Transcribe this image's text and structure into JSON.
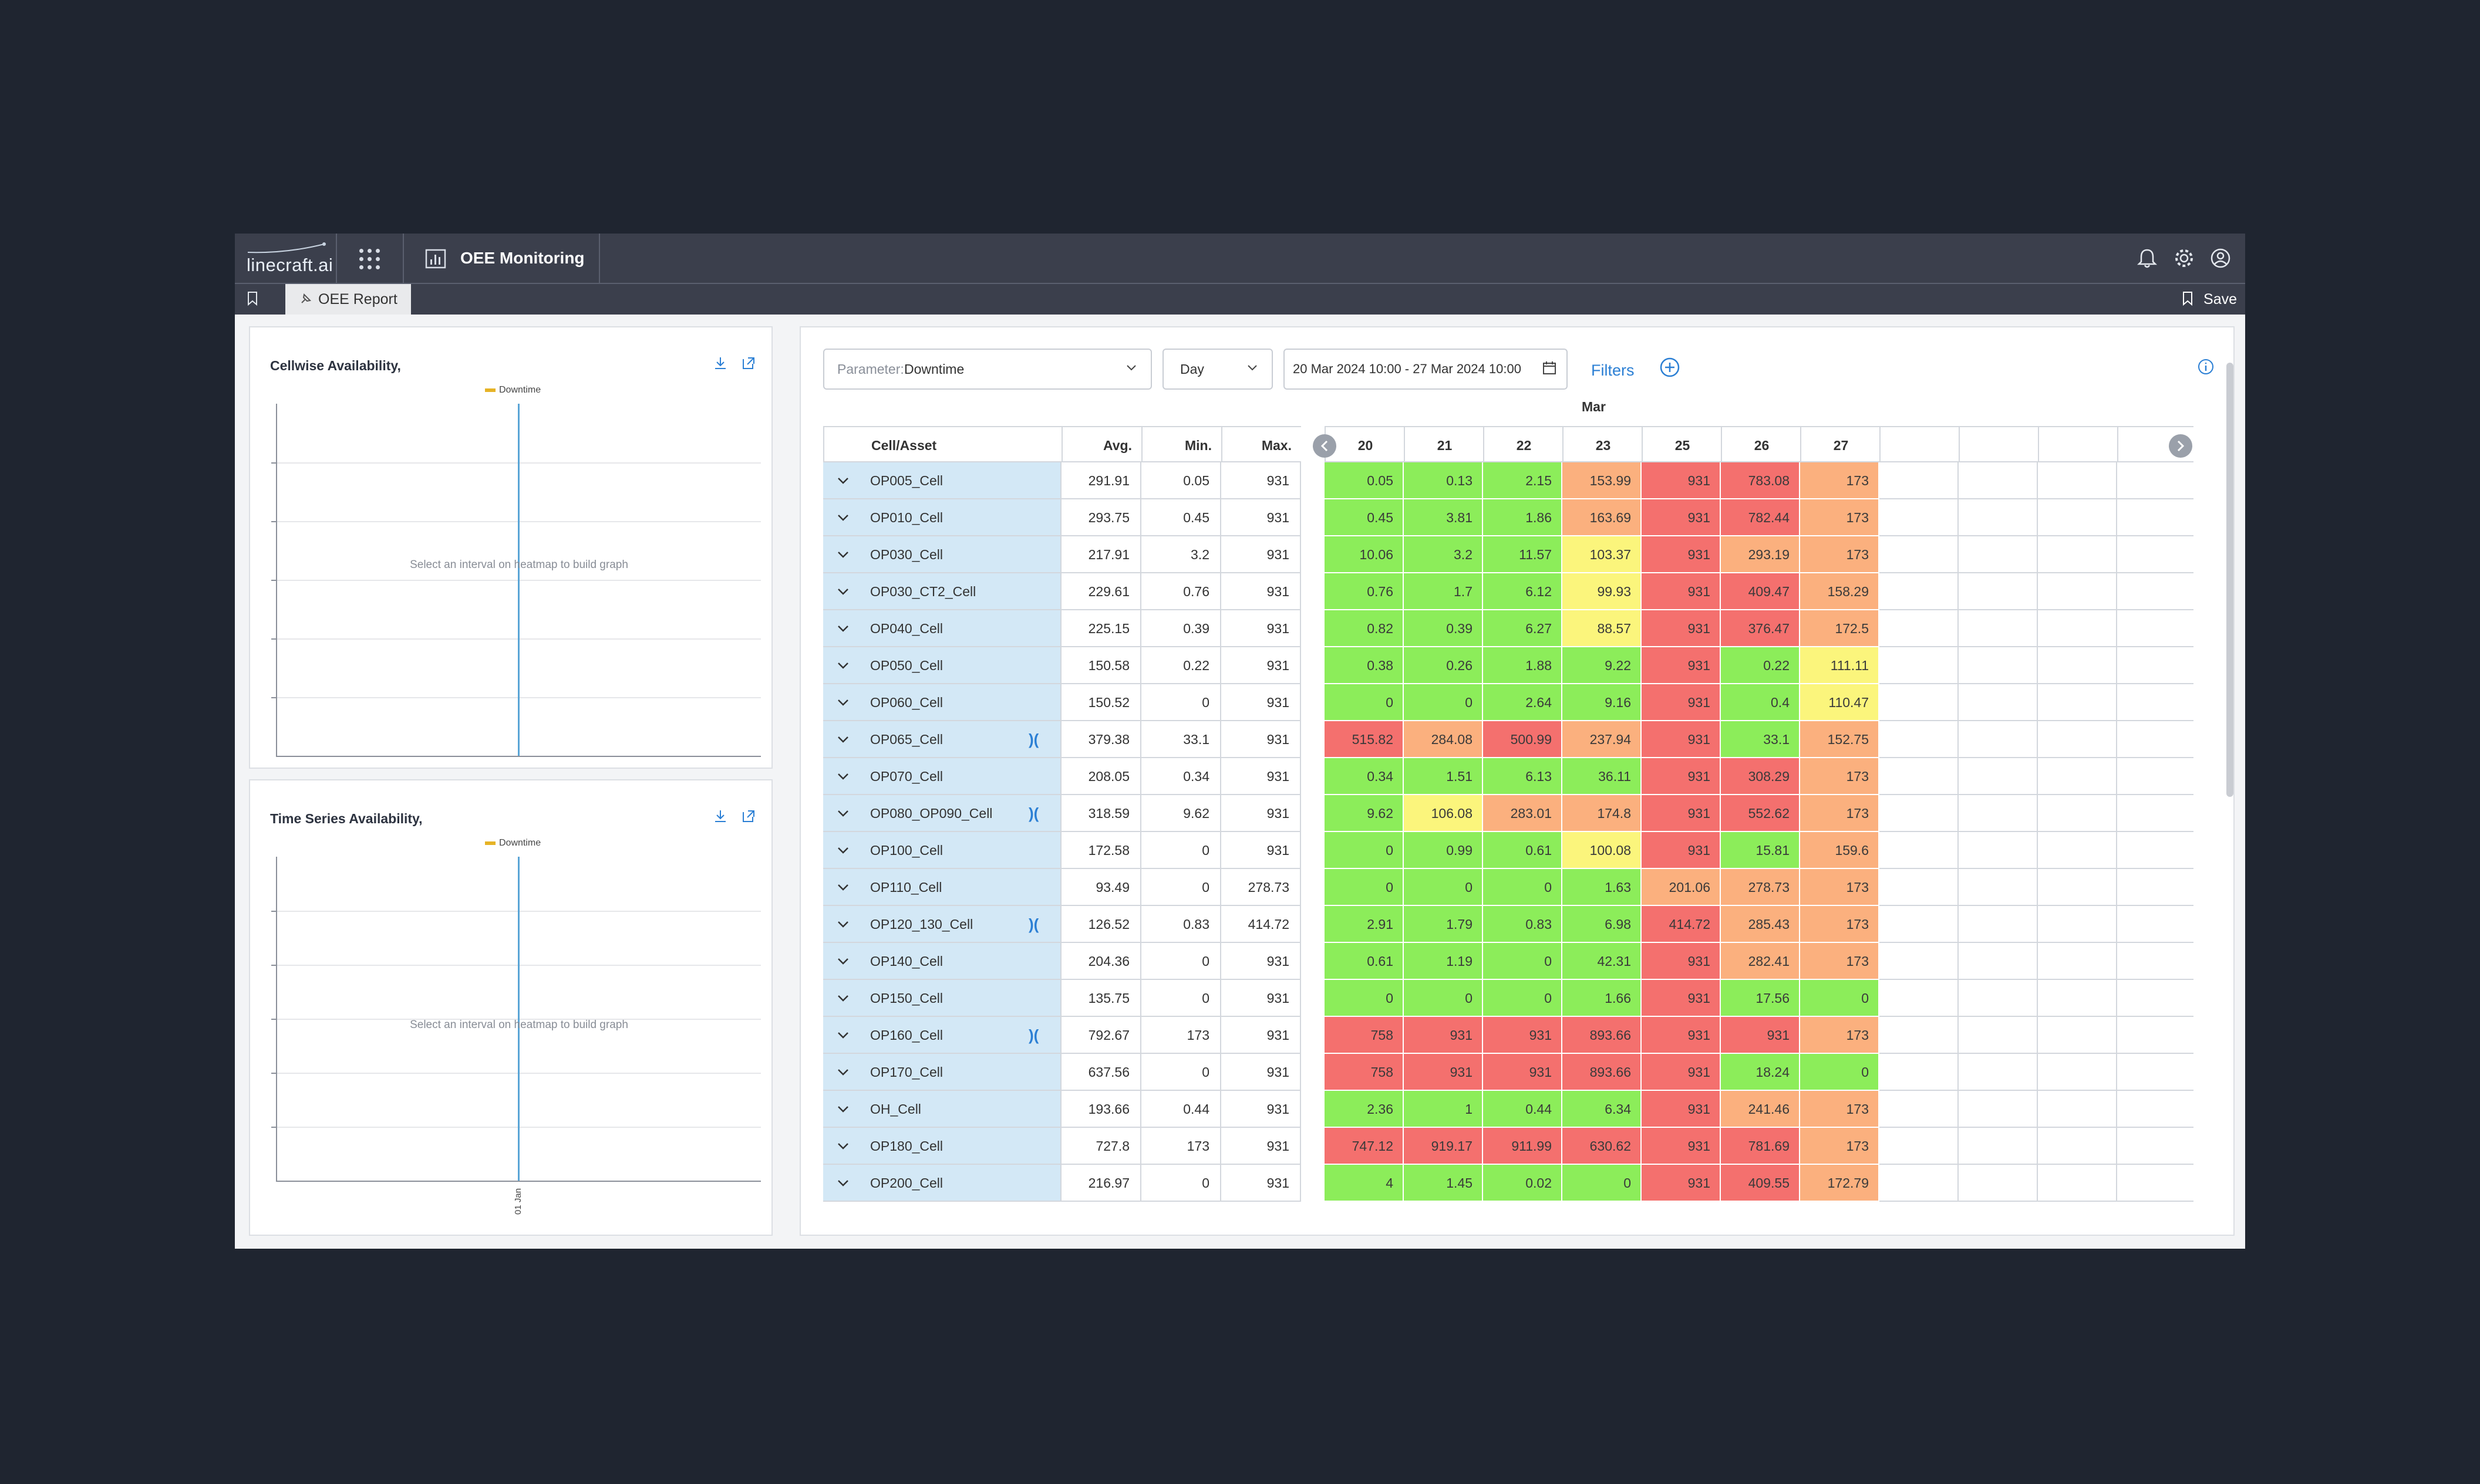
{
  "header": {
    "logo_text": "linecraft.ai",
    "module_title": "OEE Monitoring"
  },
  "tabs": [
    {
      "label": "OEE Report"
    }
  ],
  "save_label": "Save",
  "panels": {
    "cellwise": {
      "title": "Cellwise Availability,",
      "legend": "Downtime",
      "message": "Select an interval on heatmap to build graph"
    },
    "timeseries": {
      "title": "Time Series Availability,",
      "legend": "Downtime",
      "message": "Select an interval on heatmap to build graph",
      "x_label": "01 Jan"
    }
  },
  "controls": {
    "parameter_label": "Parameter:",
    "parameter_value": "Downtime",
    "period_value": "Day",
    "date_range": "20 Mar 2024 10:00 - 27 Mar 2024 10:00",
    "filters_label": "Filters"
  },
  "table": {
    "month": "Mar",
    "columns": [
      "Cell/Asset",
      "Avg.",
      "Min.",
      "Max."
    ],
    "days": [
      "20",
      "21",
      "22",
      "23",
      "25",
      "26",
      "27"
    ],
    "rows": [
      {
        "name": "OP005_Cell",
        "avg": "291.91",
        "min": "0.05",
        "max": "931",
        "vals": [
          "0.05",
          "0.13",
          "2.15",
          "153.99",
          "931",
          "783.08",
          "173"
        ],
        "link": false
      },
      {
        "name": "OP010_Cell",
        "avg": "293.75",
        "min": "0.45",
        "max": "931",
        "vals": [
          "0.45",
          "3.81",
          "1.86",
          "163.69",
          "931",
          "782.44",
          "173"
        ],
        "link": false
      },
      {
        "name": "OP030_Cell",
        "avg": "217.91",
        "min": "3.2",
        "max": "931",
        "vals": [
          "10.06",
          "3.2",
          "11.57",
          "103.37",
          "931",
          "293.19",
          "173"
        ],
        "link": false
      },
      {
        "name": "OP030_CT2_Cell",
        "avg": "229.61",
        "min": "0.76",
        "max": "931",
        "vals": [
          "0.76",
          "1.7",
          "6.12",
          "99.93",
          "931",
          "409.47",
          "158.29"
        ],
        "link": false
      },
      {
        "name": "OP040_Cell",
        "avg": "225.15",
        "min": "0.39",
        "max": "931",
        "vals": [
          "0.82",
          "0.39",
          "6.27",
          "88.57",
          "931",
          "376.47",
          "172.5"
        ],
        "link": false
      },
      {
        "name": "OP050_Cell",
        "avg": "150.58",
        "min": "0.22",
        "max": "931",
        "vals": [
          "0.38",
          "0.26",
          "1.88",
          "9.22",
          "931",
          "0.22",
          "111.11"
        ],
        "link": false
      },
      {
        "name": "OP060_Cell",
        "avg": "150.52",
        "min": "0",
        "max": "931",
        "vals": [
          "0",
          "0",
          "2.64",
          "9.16",
          "931",
          "0.4",
          "110.47"
        ],
        "link": false
      },
      {
        "name": "OP065_Cell",
        "avg": "379.38",
        "min": "33.1",
        "max": "931",
        "vals": [
          "515.82",
          "284.08",
          "500.99",
          "237.94",
          "931",
          "33.1",
          "152.75"
        ],
        "link": true
      },
      {
        "name": "OP070_Cell",
        "avg": "208.05",
        "min": "0.34",
        "max": "931",
        "vals": [
          "0.34",
          "1.51",
          "6.13",
          "36.11",
          "931",
          "308.29",
          "173"
        ],
        "link": false
      },
      {
        "name": "OP080_OP090_Cell",
        "avg": "318.59",
        "min": "9.62",
        "max": "931",
        "vals": [
          "9.62",
          "106.08",
          "283.01",
          "174.8",
          "931",
          "552.62",
          "173"
        ],
        "link": true
      },
      {
        "name": "OP100_Cell",
        "avg": "172.58",
        "min": "0",
        "max": "931",
        "vals": [
          "0",
          "0.99",
          "0.61",
          "100.08",
          "931",
          "15.81",
          "159.6"
        ],
        "link": false
      },
      {
        "name": "OP110_Cell",
        "avg": "93.49",
        "min": "0",
        "max": "278.73",
        "vals": [
          "0",
          "0",
          "0",
          "1.63",
          "201.06",
          "278.73",
          "173"
        ],
        "link": false
      },
      {
        "name": "OP120_130_Cell",
        "avg": "126.52",
        "min": "0.83",
        "max": "414.72",
        "vals": [
          "2.91",
          "1.79",
          "0.83",
          "6.98",
          "414.72",
          "285.43",
          "173"
        ],
        "link": true
      },
      {
        "name": "OP140_Cell",
        "avg": "204.36",
        "min": "0",
        "max": "931",
        "vals": [
          "0.61",
          "1.19",
          "0",
          "42.31",
          "931",
          "282.41",
          "173"
        ],
        "link": false
      },
      {
        "name": "OP150_Cell",
        "avg": "135.75",
        "min": "0",
        "max": "931",
        "vals": [
          "0",
          "0",
          "0",
          "1.66",
          "931",
          "17.56",
          "0"
        ],
        "link": false
      },
      {
        "name": "OP160_Cell",
        "avg": "792.67",
        "min": "173",
        "max": "931",
        "vals": [
          "758",
          "931",
          "931",
          "893.66",
          "931",
          "931",
          "173"
        ],
        "link": true
      },
      {
        "name": "OP170_Cell",
        "avg": "637.56",
        "min": "0",
        "max": "931",
        "vals": [
          "758",
          "931",
          "931",
          "893.66",
          "931",
          "18.24",
          "0"
        ],
        "link": false
      },
      {
        "name": "OH_Cell",
        "avg": "193.66",
        "min": "0.44",
        "max": "931",
        "vals": [
          "2.36",
          "1",
          "0.44",
          "6.34",
          "931",
          "241.46",
          "173"
        ],
        "link": false
      },
      {
        "name": "OP180_Cell",
        "avg": "727.8",
        "min": "173",
        "max": "931",
        "vals": [
          "747.12",
          "919.17",
          "911.99",
          "630.62",
          "931",
          "781.69",
          "173"
        ],
        "link": false
      },
      {
        "name": "OP200_Cell",
        "avg": "216.97",
        "min": "0",
        "max": "931",
        "vals": [
          "4",
          "1.45",
          "0.02",
          "0",
          "931",
          "409.55",
          "172.79"
        ],
        "link": false
      }
    ]
  },
  "colors": {
    "heat_green": "#8ced5a",
    "heat_yellow": "#fbf57c",
    "heat_orange": "#fbb07e",
    "heat_red": "#f4706e",
    "name_bg": "#d3e8f6",
    "accent": "#2b7fd4"
  }
}
